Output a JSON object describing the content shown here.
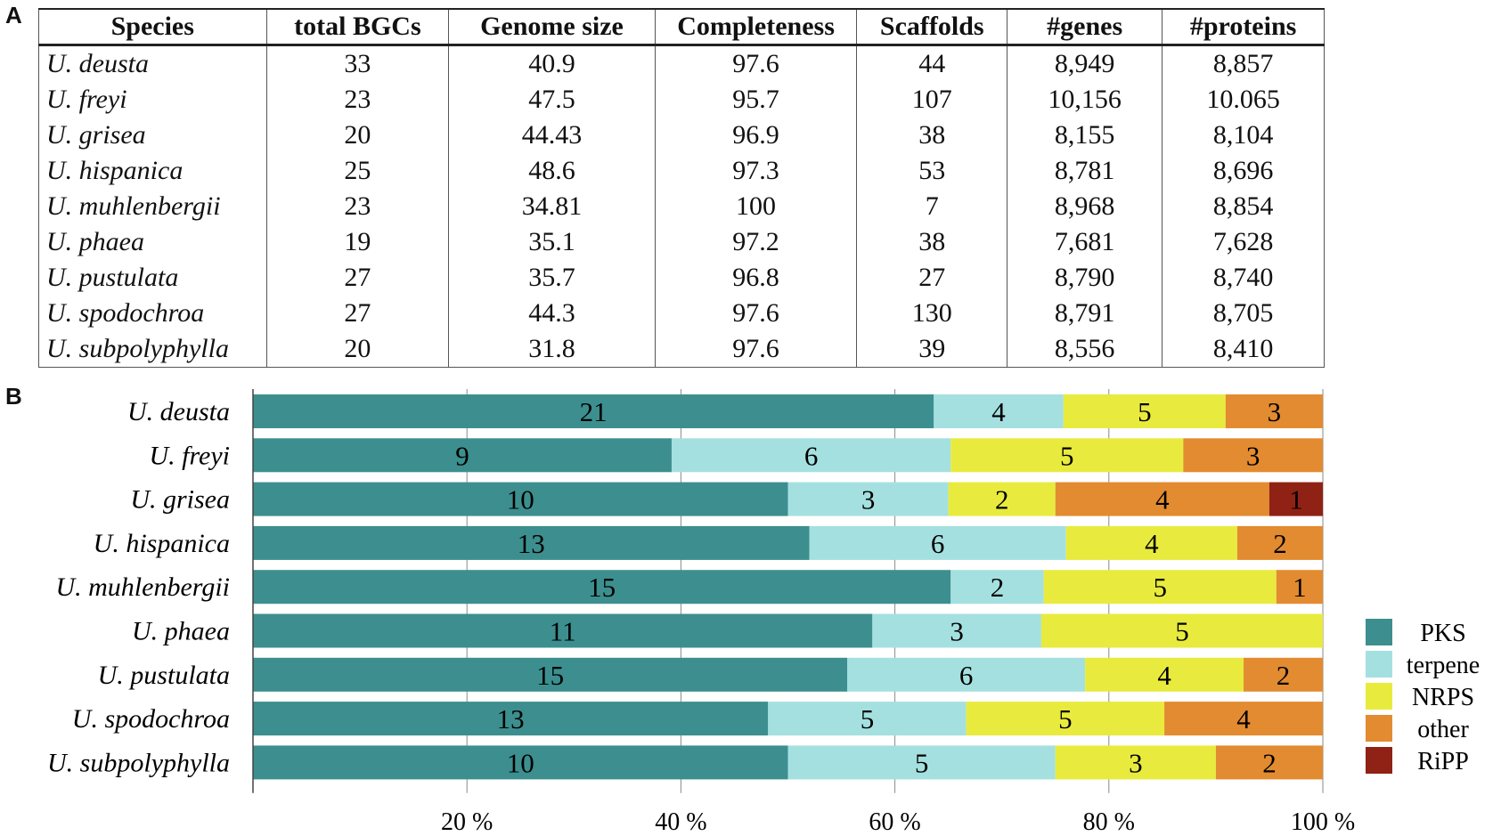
{
  "panel_labels": {
    "a": "A",
    "b": "B"
  },
  "table": {
    "headers": [
      "Species",
      "total BGCs",
      "Genome size",
      "Completeness",
      "Scaffolds",
      "#genes",
      "#proteins"
    ],
    "rows": [
      [
        "U. deusta",
        "33",
        "40.9",
        "97.6",
        "44",
        "8,949",
        "8,857"
      ],
      [
        "U. freyi",
        "23",
        "47.5",
        "95.7",
        "107",
        "10,156",
        "10.065"
      ],
      [
        "U. grisea",
        "20",
        "44.43",
        "96.9",
        "38",
        "8,155",
        "8,104"
      ],
      [
        "U. hispanica",
        "25",
        "48.6",
        "97.3",
        "53",
        "8,781",
        "8,696"
      ],
      [
        "U. muhlenbergii",
        "23",
        "34.81",
        "100",
        "7",
        "8,968",
        "8,854"
      ],
      [
        "U. phaea",
        "19",
        "35.1",
        "97.2",
        "38",
        "7,681",
        "7,628"
      ],
      [
        "U. pustulata",
        "27",
        "35.7",
        "96.8",
        "27",
        "8,790",
        "8,740"
      ],
      [
        "U. spodochroa",
        "27",
        "44.3",
        "97.6",
        "130",
        "8,791",
        "8,705"
      ],
      [
        "U. subpolyphylla",
        "20",
        "31.8",
        "97.6",
        "39",
        "8,556",
        "8,410"
      ]
    ]
  },
  "chart_data": {
    "type": "bar",
    "orientation": "horizontal",
    "stacked": "percent",
    "categories": [
      "U. deusta",
      "U. freyi",
      "U. grisea",
      "U. hispanica",
      "U. muhlenbergii",
      "U. phaea",
      "U. pustulata",
      "U. spodochroa",
      "U. subpolyphylla"
    ],
    "series": [
      {
        "name": "PKS",
        "color": "#3c8f8e",
        "values": [
          21,
          9,
          10,
          13,
          15,
          11,
          15,
          13,
          10
        ]
      },
      {
        "name": "terpene",
        "color": "#a5e0e0",
        "values": [
          4,
          6,
          3,
          6,
          2,
          3,
          6,
          5,
          5
        ]
      },
      {
        "name": "NRPS",
        "color": "#e8eb3d",
        "values": [
          5,
          5,
          2,
          4,
          5,
          5,
          4,
          5,
          3
        ]
      },
      {
        "name": "other",
        "color": "#e38b30",
        "values": [
          3,
          3,
          4,
          2,
          1,
          0,
          2,
          4,
          2
        ]
      },
      {
        "name": "RiPP",
        "color": "#8f2214",
        "values": [
          0,
          0,
          1,
          0,
          0,
          0,
          0,
          0,
          0
        ]
      }
    ],
    "x_ticks": [
      20,
      40,
      60,
      80,
      100
    ],
    "x_tick_labels": [
      "20 %",
      "40 %",
      "60 %",
      "80 %",
      "100 %"
    ],
    "xlim": [
      0,
      100
    ],
    "grid": true,
    "legend_position": "right",
    "title": "",
    "xlabel": "",
    "ylabel": ""
  }
}
